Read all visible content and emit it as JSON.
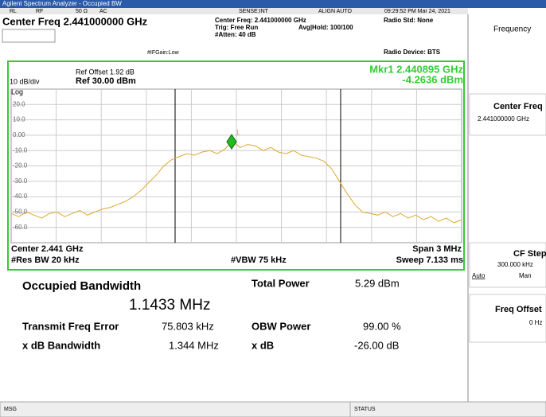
{
  "title_bar": "Agilent Spectrum Analyzer - Occupied BW",
  "status_row": {
    "rl": "RL",
    "rf": "RF",
    "impedance": "50 Ω",
    "coupling": "AC",
    "sense": "SENSE:INT",
    "align": "ALIGN AUTO",
    "time": "09:29:52 PM Mar 24, 2021"
  },
  "header": {
    "center_freq": "Center Freq 2.441000000 GHz",
    "if_gain": "#IFGain:Low",
    "center_freq_small": "Center Freq: 2.441000000 GHz",
    "trig": "Trig: Free Run",
    "avg_hold": "Avg|Hold: 100/100",
    "atten": "#Atten: 40 dB",
    "radio_std": "Radio Std: None",
    "radio_device": "Radio Device: BTS"
  },
  "plot": {
    "ref_offset": "Ref Offset 1.92 dB",
    "scale": "10 dB/div",
    "ref_level": "Ref 30.00 dBm",
    "log": "Log",
    "marker": {
      "number": "1",
      "freq": "Mkr1 2.440895 GHz",
      "value": -4.2636,
      "value_label": "-4.2636 dBm"
    },
    "ylim": [
      -70,
      30
    ],
    "yticks": [
      {
        "value": 20,
        "label": "20.0"
      },
      {
        "value": 10,
        "label": "10.0"
      },
      {
        "value": 0,
        "label": "0.00"
      },
      {
        "value": -10,
        "label": "-10.0"
      },
      {
        "value": -20,
        "label": "-20.0"
      },
      {
        "value": -30,
        "label": "-30.0"
      },
      {
        "value": -40,
        "label": "-40.0"
      },
      {
        "value": -50,
        "label": "-50.0"
      },
      {
        "value": -60,
        "label": "-60.0"
      }
    ],
    "trace": {
      "color": "#e0a830",
      "values": [
        -51,
        -53,
        -50,
        -52,
        -54,
        -51,
        -50,
        -53,
        -51,
        -49,
        -52,
        -50,
        -48,
        -47,
        -45,
        -43,
        -40,
        -36,
        -31,
        -26,
        -20,
        -16,
        -14,
        -12,
        -13,
        -11,
        -10,
        -12,
        -9,
        -4,
        -8,
        -6,
        -7,
        -10,
        -8,
        -11,
        -12,
        -10,
        -13,
        -14,
        -15,
        -17,
        -22,
        -30,
        -38,
        -45,
        -50,
        -51,
        -52,
        -50,
        -53,
        -51,
        -54,
        -52,
        -55,
        -53,
        -56,
        -54,
        -57,
        -55
      ]
    },
    "center": "Center 2.441 GHz",
    "res_bw": "#Res BW 20 kHz",
    "vbw": "#VBW 75 kHz",
    "span": "Span 3 MHz",
    "sweep": "Sweep 7.133 ms"
  },
  "results": {
    "obw_label": "Occupied Bandwidth",
    "obw_value": "1.1433 MHz",
    "total_power_label": "Total Power",
    "total_power_value": "5.29 dBm",
    "freq_error_label": "Transmit Freq Error",
    "freq_error_value": "75.803 kHz",
    "obw_power_label": "OBW Power",
    "obw_power_value": "99.00 %",
    "xdb_bw_label": "x dB Bandwidth",
    "xdb_bw_value": "1.344 MHz",
    "xdb_label": "x dB",
    "xdb_value": "-26.00 dB"
  },
  "softkeys": {
    "menu": "Frequency",
    "center_freq": "Center Freq",
    "center_freq_value": "2.441000000 GHz",
    "cf_step": "CF Step",
    "cf_step_value": "300.000 kHz",
    "auto": "Auto",
    "man": "Man",
    "freq_offset": "Freq Offset",
    "freq_offset_value": "0 Hz"
  },
  "footer": {
    "msg": "MSG",
    "status": "STATUS"
  }
}
